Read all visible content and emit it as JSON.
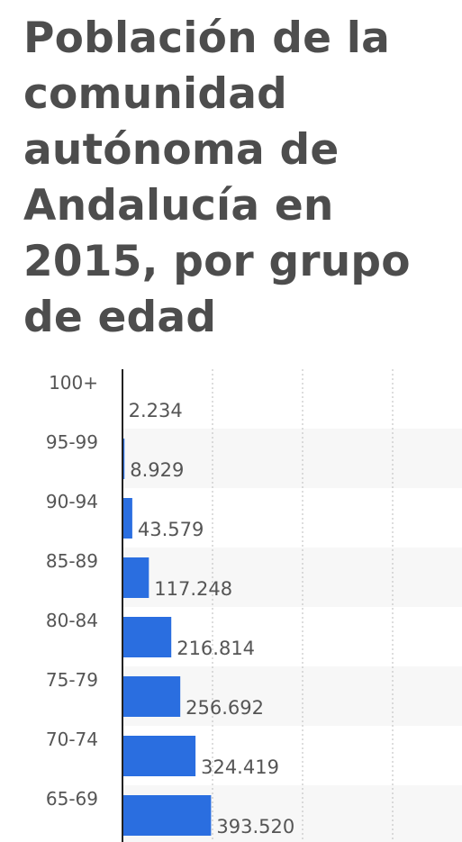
{
  "chart_data": {
    "type": "bar",
    "orientation": "horizontal",
    "title": "Población de la comunidad autónoma de Andalucía en 2015, por grupo de edad",
    "categories": [
      "100+",
      "95-99",
      "90-94",
      "85-89",
      "80-84",
      "75-79",
      "70-74",
      "65-69"
    ],
    "values": [
      2234,
      8929,
      43579,
      117248,
      216814,
      256692,
      324419,
      393520
    ],
    "value_labels": [
      "2.234",
      "8.929",
      "43.579",
      "117.248",
      "216.814",
      "256.692",
      "324.419",
      "393.520"
    ],
    "xlim": [
      0,
      1200000
    ],
    "grid": true,
    "colors": {
      "bar": "#2a6ee0",
      "text": "#555555",
      "title": "#4d4d4d",
      "band": "#f7f7f7",
      "grid": "#bbbbbb",
      "axis": "#222222"
    }
  }
}
